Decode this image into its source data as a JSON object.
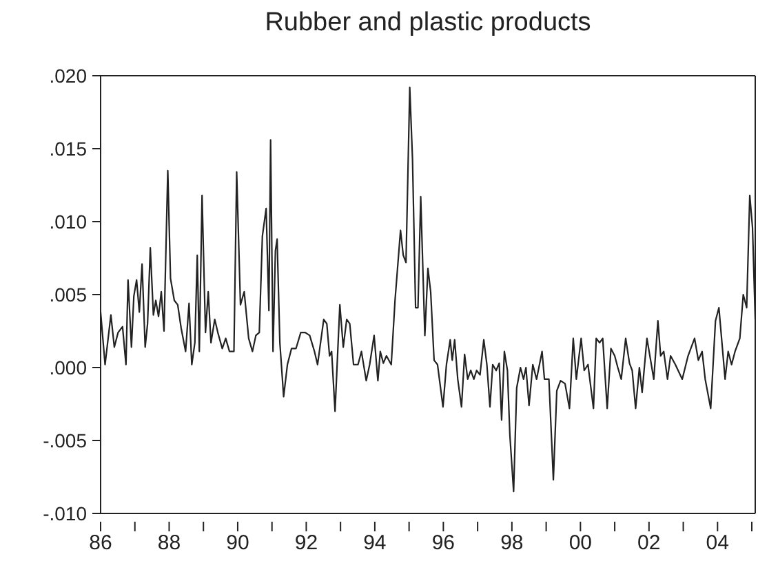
{
  "chart_data": {
    "type": "line",
    "title": "Rubber and plastic products",
    "x": [
      1986.0,
      1986.13,
      1986.3,
      1986.4,
      1986.51,
      1986.64,
      1986.74,
      1986.8,
      1986.9,
      1986.97,
      1987.05,
      1987.13,
      1987.21,
      1987.3,
      1987.37,
      1987.45,
      1987.54,
      1987.61,
      1987.69,
      1987.77,
      1987.85,
      1987.96,
      1988.04,
      1988.15,
      1988.25,
      1988.35,
      1988.48,
      1988.58,
      1988.66,
      1988.75,
      1988.82,
      1988.88,
      1988.96,
      1989.06,
      1989.14,
      1989.22,
      1989.33,
      1989.42,
      1989.55,
      1989.65,
      1989.76,
      1989.89,
      1989.97,
      1990.08,
      1990.19,
      1990.32,
      1990.43,
      1990.53,
      1990.63,
      1990.72,
      1990.83,
      1990.91,
      1990.96,
      1991.03,
      1991.1,
      1991.15,
      1991.23,
      1991.34,
      1991.45,
      1991.57,
      1991.7,
      1991.84,
      1991.97,
      1992.1,
      1992.24,
      1992.33,
      1992.51,
      1992.6,
      1992.68,
      1992.74,
      1992.84,
      1992.98,
      1993.08,
      1993.18,
      1993.27,
      1993.38,
      1993.51,
      1993.61,
      1993.75,
      1993.85,
      1993.98,
      1994.09,
      1994.16,
      1994.25,
      1994.34,
      1994.48,
      1994.59,
      1994.75,
      1994.83,
      1994.91,
      1995.02,
      1995.1,
      1995.19,
      1995.26,
      1995.34,
      1995.46,
      1995.55,
      1995.63,
      1995.73,
      1995.83,
      1995.99,
      1996.09,
      1996.2,
      1996.26,
      1996.33,
      1996.42,
      1996.53,
      1996.62,
      1996.71,
      1996.8,
      1996.89,
      1996.97,
      1997.07,
      1997.18,
      1997.27,
      1997.36,
      1997.44,
      1997.54,
      1997.63,
      1997.7,
      1997.78,
      1997.87,
      1997.94,
      1998.05,
      1998.14,
      1998.25,
      1998.34,
      1998.41,
      1998.5,
      1998.61,
      1998.72,
      1998.88,
      1998.95,
      1999.08,
      1999.21,
      1999.31,
      1999.42,
      1999.55,
      1999.68,
      1999.79,
      1999.88,
      2000.02,
      2000.11,
      2000.22,
      2000.38,
      2000.46,
      2000.56,
      2000.65,
      2000.78,
      2000.89,
      2001.0,
      2001.09,
      2001.19,
      2001.32,
      2001.43,
      2001.51,
      2001.61,
      2001.72,
      2001.8,
      2001.94,
      2002.04,
      2002.14,
      2002.26,
      2002.34,
      2002.43,
      2002.54,
      2002.63,
      2002.77,
      2002.97,
      2003.14,
      2003.33,
      2003.44,
      2003.55,
      2003.64,
      2003.8,
      2003.94,
      2004.04,
      2004.14,
      2004.22,
      2004.31,
      2004.41,
      2004.51,
      2004.65,
      2004.75,
      2004.85,
      2004.94,
      2005.02,
      2005.1
    ],
    "series": [
      {
        "color": "#222222",
        "values": [
          0.0038,
          0.0002,
          0.0036,
          0.0014,
          0.0024,
          0.0028,
          0.0002,
          0.006,
          0.0014,
          0.0049,
          0.006,
          0.0038,
          0.0071,
          0.0014,
          0.003,
          0.0082,
          0.0036,
          0.0046,
          0.0035,
          0.0052,
          0.0025,
          0.0135,
          0.0061,
          0.0046,
          0.0043,
          0.0027,
          0.0011,
          0.0044,
          0.0002,
          0.0017,
          0.0077,
          0.0011,
          0.0118,
          0.0024,
          0.0052,
          0.0017,
          0.0033,
          0.0024,
          0.0013,
          0.002,
          0.0011,
          0.0011,
          0.0134,
          0.0043,
          0.0052,
          0.002,
          0.0011,
          0.0022,
          0.0024,
          0.009,
          0.0109,
          0.0039,
          0.0156,
          0.0011,
          0.008,
          0.0088,
          0.0017,
          -0.002,
          0.0002,
          0.0013,
          0.0013,
          0.0024,
          0.0024,
          0.0022,
          0.0011,
          0.0002,
          0.0033,
          0.003,
          0.0008,
          0.0011,
          -0.003,
          0.0043,
          0.0014,
          0.0033,
          0.003,
          0.0002,
          0.0002,
          0.0011,
          -0.0009,
          0.0002,
          0.0022,
          -0.0009,
          0.0011,
          0.0003,
          0.0008,
          0.0002,
          0.0046,
          0.0094,
          0.0077,
          0.0072,
          0.0192,
          0.0143,
          0.0041,
          0.0041,
          0.0117,
          0.0022,
          0.0068,
          0.0052,
          0.0005,
          0.0002,
          -0.0027,
          0.0002,
          0.0019,
          0.0005,
          0.0019,
          -0.0008,
          -0.0027,
          0.0009,
          -0.0008,
          -0.0002,
          -0.0008,
          -0.0002,
          -0.0005,
          0.0019,
          0.0002,
          -0.0027,
          0.0002,
          -0.0002,
          0.0003,
          -0.0036,
          0.0011,
          -0.0002,
          -0.0046,
          -0.0085,
          -0.0014,
          0.0,
          -0.0008,
          0.0,
          -0.0026,
          0.0002,
          -0.0008,
          0.0011,
          -0.0008,
          -0.0008,
          -0.0077,
          -0.0016,
          -0.0009,
          -0.0011,
          -0.0028,
          0.002,
          -0.0008,
          0.002,
          -0.0002,
          0.0002,
          -0.0028,
          0.002,
          0.0017,
          0.002,
          -0.0028,
          0.0013,
          0.0008,
          0.0,
          -0.0008,
          0.002,
          0.0003,
          -0.0002,
          -0.0028,
          0.0,
          -0.0017,
          0.002,
          0.0006,
          -0.0008,
          0.0032,
          0.0008,
          0.0011,
          -0.0008,
          0.0008,
          0.0002,
          -0.0008,
          0.0008,
          0.002,
          0.0005,
          0.0011,
          -0.0008,
          -0.0028,
          0.0032,
          0.0041,
          0.0014,
          -0.0008,
          0.0011,
          0.0002,
          0.0011,
          0.002,
          0.005,
          0.0041,
          0.0118,
          0.0096,
          0.0033
        ]
      }
    ],
    "xlim": [
      1986,
      2005.1
    ],
    "xticks": [
      {
        "value": 1987,
        "label": null
      },
      {
        "value": 1988,
        "label": null
      },
      {
        "value": 1989,
        "label": null
      },
      {
        "value": 1990,
        "label": null
      },
      {
        "value": 1991,
        "label": null
      },
      {
        "value": 1992,
        "label": null
      },
      {
        "value": 1993,
        "label": null
      },
      {
        "value": 1994,
        "label": null
      },
      {
        "value": 1995,
        "label": null
      },
      {
        "value": 1996,
        "label": null
      },
      {
        "value": 1997,
        "label": null
      },
      {
        "value": 1998,
        "label": null
      },
      {
        "value": 1999,
        "label": null
      },
      {
        "value": 2000,
        "label": null
      },
      {
        "value": 2001,
        "label": null
      },
      {
        "value": 2002,
        "label": null
      },
      {
        "value": 2003,
        "label": null
      },
      {
        "value": 2004,
        "label": null
      },
      {
        "value": 2005,
        "label": null
      },
      {
        "value": 1986,
        "label": "86"
      },
      {
        "value": 1988,
        "label": "88"
      },
      {
        "value": 1990,
        "label": "90"
      },
      {
        "value": 1992,
        "label": "92"
      },
      {
        "value": 1994,
        "label": "94"
      },
      {
        "value": 1996,
        "label": "96"
      },
      {
        "value": 1998,
        "label": "98"
      },
      {
        "value": 2000,
        "label": "00"
      },
      {
        "value": 2002,
        "label": "02"
      },
      {
        "value": 2004,
        "label": "04"
      }
    ],
    "ylim": [
      -0.01,
      0.02
    ],
    "yticks": [
      {
        "value": -0.01,
        "label": "-.010"
      },
      {
        "value": -0.005,
        "label": "-.005"
      },
      {
        "value": 0,
        "label": ".000"
      },
      {
        "value": 0.005,
        "label": ".005"
      },
      {
        "value": 0.01,
        "label": ".010"
      },
      {
        "value": 0.015,
        "label": ".015"
      },
      {
        "value": 0.02,
        "label": ".020"
      }
    ],
    "grid": false,
    "legend": false,
    "marker": "none",
    "line_style": "solid"
  }
}
